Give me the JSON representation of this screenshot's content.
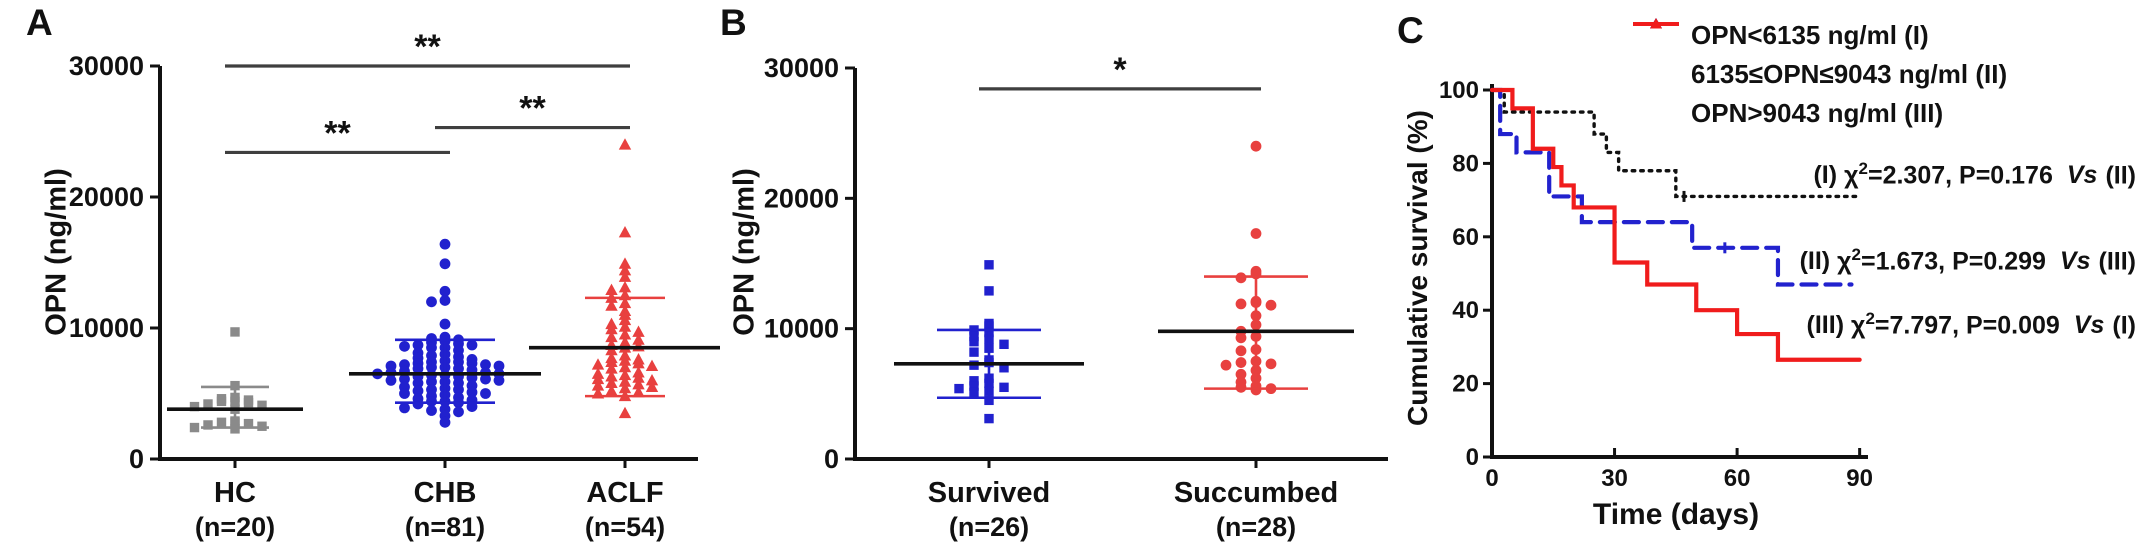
{
  "figure": {
    "background": "#ffffff"
  },
  "chart_data": {
    "panel_a": {
      "type": "scatter",
      "letter": "A",
      "ylabel": "OPN (ng/ml)",
      "yticks": [
        0,
        10000,
        20000,
        30000
      ],
      "ylim": [
        0,
        30000
      ],
      "groups": [
        {
          "label": "HC",
          "sublabel": "(n=20)",
          "marker": "square",
          "color": "#8A8A8A",
          "mean": 3800,
          "whisker_low": 2400,
          "whisker_high": 5500,
          "values": [
            9700,
            5600,
            4700,
            4600,
            4500,
            4400,
            4400,
            4300,
            4200,
            4100,
            4000,
            3800,
            2900,
            2800,
            2800,
            2700,
            2600,
            2500,
            2400,
            2300
          ]
        },
        {
          "label": "CHB",
          "sublabel": "(n=81)",
          "marker": "circle",
          "color": "#2121CE",
          "mean": 6500,
          "whisker_low": 4300,
          "whisker_high": 9100,
          "values": [
            16400,
            14900,
            12800,
            12100,
            12000,
            10300,
            9300,
            9200,
            9100,
            9000,
            8900,
            8800,
            8700,
            8700,
            8600,
            8500,
            8500,
            8300,
            8100,
            8000,
            7900,
            7800,
            7700,
            7600,
            7500,
            7400,
            7400,
            7300,
            7300,
            7200,
            7200,
            7100,
            7100,
            7000,
            7000,
            6900,
            6900,
            6800,
            6700,
            6600,
            6600,
            6500,
            6500,
            6400,
            6400,
            6300,
            6300,
            6200,
            6100,
            6100,
            6000,
            6000,
            5900,
            5900,
            5800,
            5800,
            5600,
            5500,
            5400,
            5300,
            5300,
            5200,
            5100,
            5000,
            5000,
            4900,
            4800,
            4700,
            4600,
            4500,
            4400,
            4400,
            4300,
            4200,
            4000,
            3900,
            3800,
            3700,
            3600,
            3300,
            2800
          ]
        },
        {
          "label": "ACLF",
          "sublabel": "(n=54)",
          "marker": "triangle",
          "color": "#E8403F",
          "mean": 8500,
          "whisker_low": 4800,
          "whisker_high": 12300,
          "values": [
            24000,
            17300,
            14900,
            14400,
            13900,
            13100,
            12900,
            12500,
            12300,
            11900,
            11700,
            11300,
            11000,
            10600,
            10300,
            10100,
            9900,
            9700,
            9500,
            9300,
            9100,
            8900,
            8700,
            8600,
            8500,
            8300,
            7900,
            7700,
            7600,
            7500,
            7400,
            7300,
            7200,
            7100,
            7000,
            6900,
            6600,
            6500,
            6400,
            6300,
            6200,
            6100,
            6000,
            5900,
            5800,
            5700,
            5600,
            5500,
            5400,
            5200,
            5100,
            5000,
            4800,
            3500
          ]
        }
      ],
      "significance": [
        {
          "from": 0,
          "to": 1,
          "label": "**",
          "y": 23400
        },
        {
          "from": 1,
          "to": 2,
          "label": "**",
          "y": 25300
        },
        {
          "from": 0,
          "to": 2,
          "label": "**",
          "y": 30000
        }
      ]
    },
    "panel_b": {
      "type": "scatter",
      "letter": "B",
      "ylabel": "OPN (ng/ml)",
      "yticks": [
        0,
        10000,
        20000,
        30000
      ],
      "ylim": [
        0,
        30000
      ],
      "groups": [
        {
          "label": "Survived",
          "sublabel": "(n=26)",
          "marker": "square",
          "color": "#2121CE",
          "mean": 7300,
          "whisker_low": 4700,
          "whisker_high": 9900,
          "values": [
            14900,
            12900,
            10400,
            10200,
            9900,
            9700,
            9400,
            9200,
            9000,
            8800,
            8500,
            8200,
            7600,
            7400,
            7200,
            7000,
            6200,
            6000,
            5800,
            5600,
            5500,
            5400,
            5200,
            5100,
            4500,
            3100
          ]
        },
        {
          "label": "Succumbed",
          "sublabel": "(n=28)",
          "marker": "circle",
          "color": "#E8403F",
          "mean": 9800,
          "whisker_low": 5400,
          "whisker_high": 14000,
          "values": [
            24000,
            17300,
            14400,
            14200,
            13900,
            12100,
            12000,
            11900,
            11800,
            11000,
            10300,
            9800,
            9400,
            9300,
            8400,
            8300,
            7500,
            7400,
            7300,
            7200,
            6800,
            6500,
            6200,
            5900,
            5600,
            5500,
            5400,
            5300
          ]
        }
      ],
      "significance": [
        {
          "from": 0,
          "to": 1,
          "label": "*",
          "y": 28400
        }
      ]
    },
    "panel_c": {
      "type": "line",
      "letter": "C",
      "ylabel": "Cumulative survival (%)",
      "xlabel": "Time (days)",
      "xticks": [
        0,
        30,
        60,
        90
      ],
      "yticks": [
        0,
        20,
        40,
        60,
        80,
        100
      ],
      "xlim": [
        0,
        90
      ],
      "ylim": [
        0,
        100
      ],
      "legend_position": "top-right",
      "series": [
        {
          "name": "OPN<6135 ng/ml (I)",
          "color": "#111111",
          "line_style": "dotted",
          "start": 100,
          "drops": [
            [
              3,
              94
            ],
            [
              25,
              88
            ],
            [
              28,
              83
            ],
            [
              31,
              78
            ],
            [
              45,
              71
            ]
          ],
          "end_x": 90,
          "censors": [
            [
              47,
              71
            ]
          ]
        },
        {
          "name": "6135≤OPN≤9043 ng/ml (II)",
          "color": "#2222CE",
          "line_style": "dashed",
          "start": 100,
          "drops": [
            [
              2,
              88
            ],
            [
              6,
              83
            ],
            [
              14,
              71
            ],
            [
              22,
              64
            ],
            [
              49,
              57
            ],
            [
              70,
              47
            ]
          ],
          "end_x": 88,
          "censors": [
            [
              57,
              57
            ]
          ]
        },
        {
          "name": "OPN>9043 ng/ml (III)",
          "color": "#F01C1C",
          "line_style": "solid",
          "start": 100,
          "drops": [
            [
              5,
              95
            ],
            [
              10,
              84
            ],
            [
              15,
              79
            ],
            [
              17,
              74
            ],
            [
              20,
              68
            ],
            [
              30,
              53
            ],
            [
              38,
              47
            ],
            [
              50,
              40
            ],
            [
              60,
              33.5
            ],
            [
              70,
              26.5
            ]
          ],
          "end_x": 90,
          "censors": []
        }
      ],
      "stats": [
        {
          "group": "(I)",
          "chi": "χ",
          "sup": "2",
          "rest": "=2.307, P=0.176",
          "vs": "Vs",
          "other": "(II)"
        },
        {
          "group": "(II)",
          "chi": "χ",
          "sup": "2",
          "rest": "=1.673, P=0.299",
          "vs": "Vs",
          "other": "(III)"
        },
        {
          "group": "(III)",
          "chi": "χ",
          "sup": "2",
          "rest": "=7.797, P=0.009",
          "vs": "Vs",
          "other": "(I)"
        }
      ]
    }
  }
}
